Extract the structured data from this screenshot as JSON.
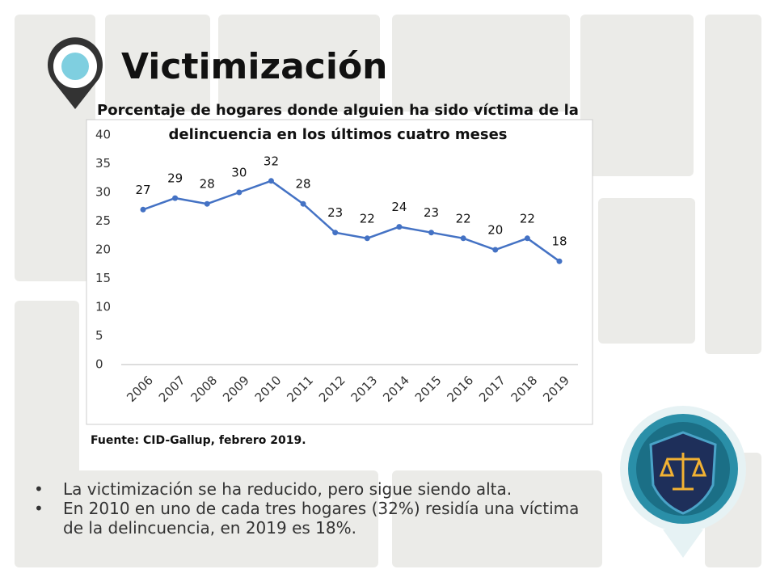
{
  "slide": {
    "title": "Victimización",
    "source": "Fuente: CID-Gallup, febrero 2019.",
    "bullets": [
      "La victimización se ha reducido, pero sigue siendo alta.",
      "En 2010 en uno de cada tres hogares (32%) residía una víctima de la delincuencia, en 2019 es 18%."
    ]
  },
  "chart_data": {
    "type": "line",
    "title": "Porcentaje de hogares donde alguien ha sido víctima de la delincuencia en los últimos cuatro meses",
    "categories": [
      "2006",
      "2007",
      "2008",
      "2009",
      "2010",
      "2011",
      "2012",
      "2013",
      "2014",
      "2015",
      "2016",
      "2017",
      "2018",
      "2019"
    ],
    "values": [
      27,
      29,
      28,
      30,
      32,
      28,
      23,
      22,
      24,
      23,
      22,
      20,
      22,
      18
    ],
    "color": "#4472c4",
    "ylim": [
      0,
      40
    ],
    "yticks": [
      0,
      5,
      10,
      15,
      20,
      25,
      30,
      35,
      40
    ],
    "grid": false
  }
}
